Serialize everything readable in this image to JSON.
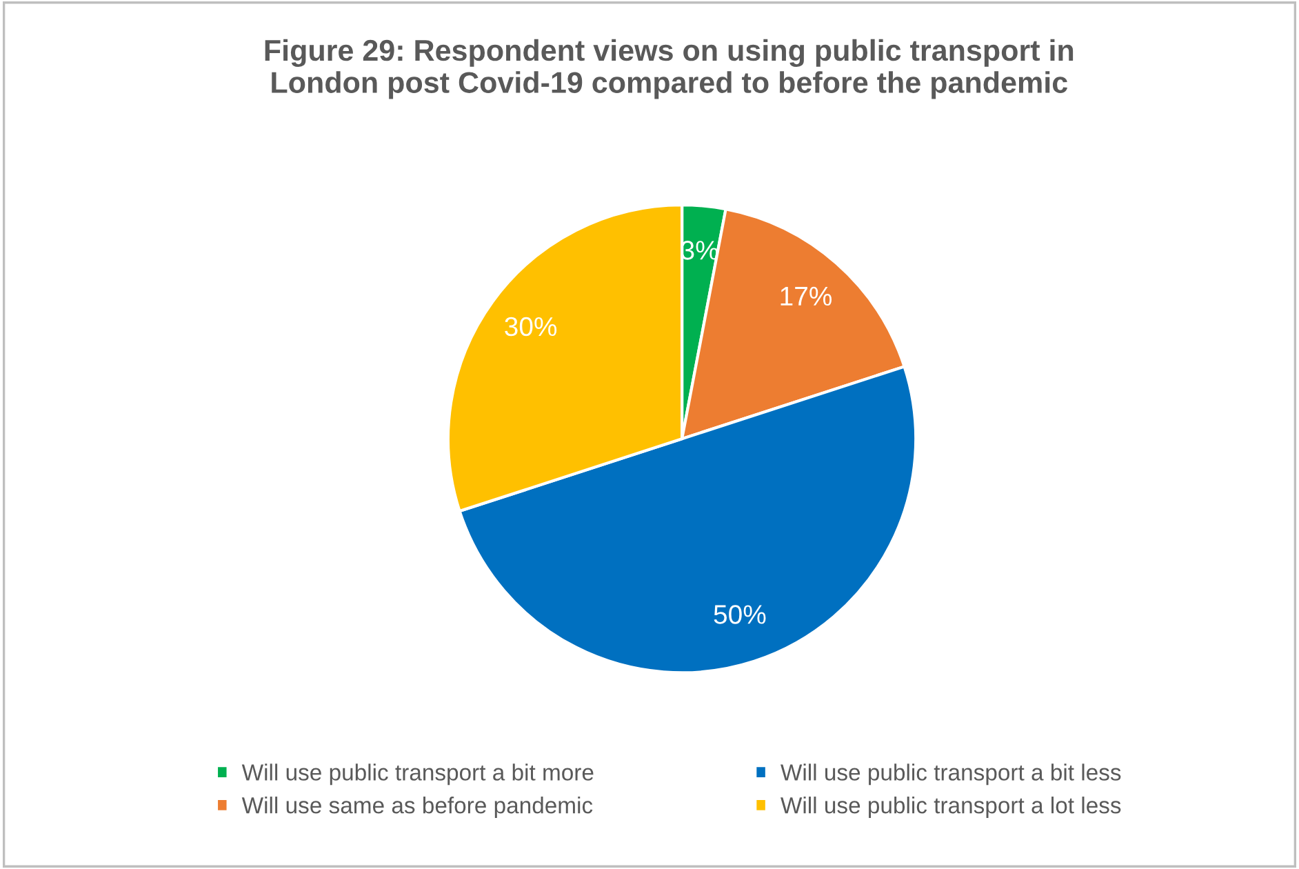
{
  "chart_data": {
    "type": "pie",
    "title": "Figure 29: Respondent views on using public transport in\nLondon post Covid-19 compared to before the pandemic",
    "categories": [
      "Will use public transport a bit more",
      "Will use same as before pandemic",
      "Will use public transport a bit less",
      "Will use public transport a lot less"
    ],
    "values": [
      3,
      17,
      50,
      30
    ],
    "colors": [
      "#00b050",
      "#ed7d31",
      "#0070c0",
      "#ffc000"
    ],
    "value_labels": [
      "3%",
      "17%",
      "50%",
      "30%"
    ],
    "legend": "bottom"
  }
}
